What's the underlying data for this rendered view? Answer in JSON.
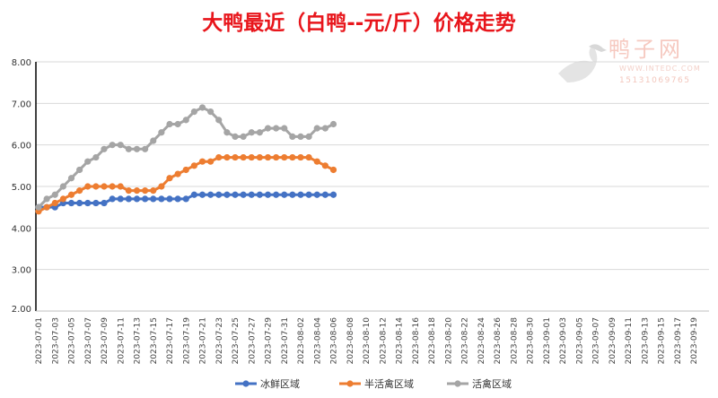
{
  "chart_data": {
    "type": "line",
    "title": "大鸭最近（白鸭--元/斤）价格走势",
    "xlabel": "",
    "ylabel": "",
    "ylim": [
      2,
      8
    ],
    "yticks": [
      "2.00",
      "3.00",
      "4.00",
      "5.00",
      "6.00",
      "7.00",
      "8.00"
    ],
    "x_start": "2023-07-01",
    "x_days": 81,
    "xtick_labels": [
      "2023-07-01",
      "2023-07-03",
      "2023-07-05",
      "2023-07-07",
      "2023-07-09",
      "2023-07-11",
      "2023-07-13",
      "2023-07-15",
      "2023-07-17",
      "2023-07-19",
      "2023-07-21",
      "2023-07-23",
      "2023-07-25",
      "2023-07-27",
      "2023-07-29",
      "2023-07-31",
      "2023-08-02",
      "2023-08-04",
      "2023-08-06",
      "2023-08-08",
      "2023-08-10",
      "2023-08-12",
      "2023-08-14",
      "2023-08-16",
      "2023-08-18",
      "2023-08-20",
      "2023-08-22",
      "2023-08-24",
      "2023-08-26",
      "2023-08-28",
      "2023-08-30",
      "2023-09-01",
      "2023-09-03",
      "2023-09-05",
      "2023-09-07",
      "2023-09-09",
      "2023-09-11",
      "2023-09-13",
      "2023-09-15",
      "2023-09-17",
      "2023-09-19"
    ],
    "grid": true,
    "legend": "bottom",
    "series": [
      {
        "name": "冰鲜区域",
        "color": "#4472c4",
        "values": [
          4.5,
          4.5,
          4.5,
          4.6,
          4.6,
          4.6,
          4.6,
          4.6,
          4.6,
          4.7,
          4.7,
          4.7,
          4.7,
          4.7,
          4.7,
          4.7,
          4.7,
          4.7,
          4.7,
          4.8,
          4.8,
          4.8,
          4.8,
          4.8,
          4.8,
          4.8,
          4.8,
          4.8,
          4.8,
          4.8,
          4.8,
          4.8,
          4.8,
          4.8,
          4.8,
          4.8,
          4.8
        ]
      },
      {
        "name": "半活禽区域",
        "color": "#ed7d31",
        "values": [
          4.4,
          4.5,
          4.6,
          4.7,
          4.8,
          4.9,
          5.0,
          5.0,
          5.0,
          5.0,
          5.0,
          4.9,
          4.9,
          4.9,
          4.9,
          5.0,
          5.2,
          5.3,
          5.4,
          5.5,
          5.6,
          5.6,
          5.7,
          5.7,
          5.7,
          5.7,
          5.7,
          5.7,
          5.7,
          5.7,
          5.7,
          5.7,
          5.7,
          5.7,
          5.6,
          5.5,
          5.4
        ]
      },
      {
        "name": "活禽区域",
        "color": "#a5a5a5",
        "values": [
          4.5,
          4.7,
          4.8,
          5.0,
          5.2,
          5.4,
          5.6,
          5.7,
          5.9,
          6.0,
          6.0,
          5.9,
          5.9,
          5.9,
          6.1,
          6.3,
          6.5,
          6.5,
          6.6,
          6.8,
          6.9,
          6.8,
          6.6,
          6.3,
          6.2,
          6.2,
          6.3,
          6.3,
          6.4,
          6.4,
          6.4,
          6.2,
          6.2,
          6.2,
          6.4,
          6.4,
          6.5
        ]
      }
    ]
  },
  "watermark": {
    "name": "鸭子网",
    "url": "WWW.INTEDC.COM",
    "phone": "15131069765"
  }
}
